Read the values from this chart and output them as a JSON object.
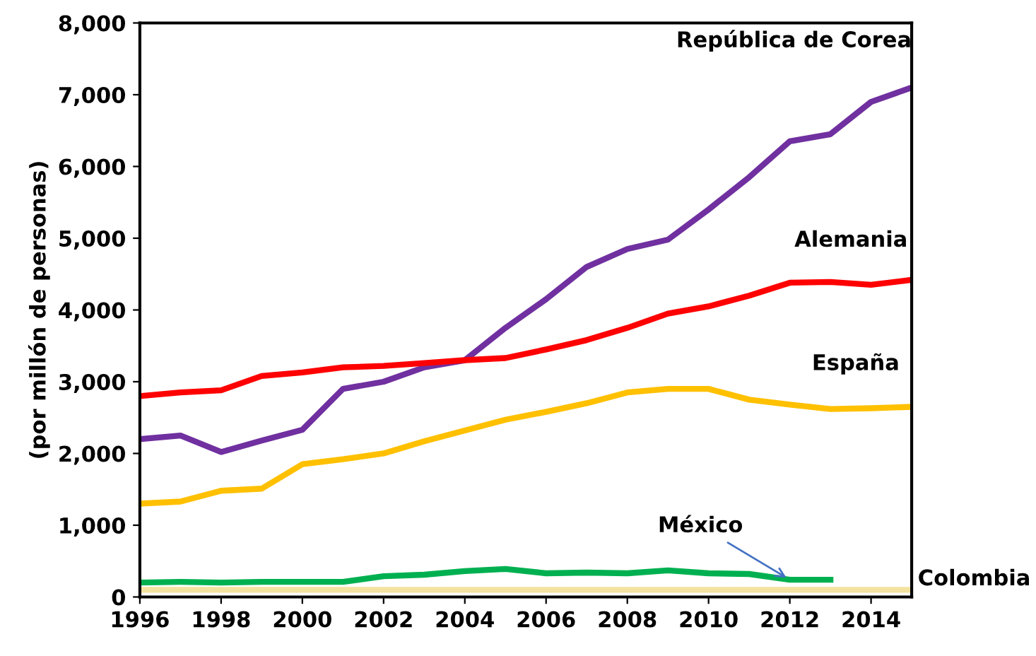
{
  "chart_data": {
    "type": "line",
    "ylabel": "(por millón de personas)",
    "x": [
      1996,
      1997,
      1998,
      1999,
      2000,
      2001,
      2002,
      2003,
      2004,
      2005,
      2006,
      2007,
      2008,
      2009,
      2010,
      2011,
      2012,
      2013,
      2014,
      2015
    ],
    "xlim": [
      1996,
      2015
    ],
    "xticks": [
      1996,
      1998,
      2000,
      2002,
      2004,
      2006,
      2008,
      2010,
      2012,
      2014
    ],
    "ylim": [
      0,
      8000
    ],
    "yticks": [
      {
        "value": 0,
        "label": "0"
      },
      {
        "value": 1000,
        "label": "1,000"
      },
      {
        "value": 2000,
        "label": "2,000"
      },
      {
        "value": 3000,
        "label": "3,000"
      },
      {
        "value": 4000,
        "label": "4,000"
      },
      {
        "value": 5000,
        "label": "5,000"
      },
      {
        "value": 6000,
        "label": "6,000"
      },
      {
        "value": 7000,
        "label": "7,000"
      },
      {
        "value": 8000,
        "label": "8,000"
      }
    ],
    "grid": false,
    "legend": false,
    "marker": "none",
    "line_style": "solid",
    "series": [
      {
        "name": "República de Corea",
        "color": "#7030a0",
        "values": [
          2200,
          2250,
          2020,
          2180,
          2330,
          2900,
          3000,
          3200,
          3300,
          3750,
          4150,
          4600,
          4850,
          4980,
          5400,
          5850,
          6350,
          6450,
          6900,
          7100
        ]
      },
      {
        "name": "Alemania",
        "color": "#ff0000",
        "values": [
          2800,
          2850,
          2880,
          3080,
          3130,
          3200,
          3220,
          3260,
          3300,
          3330,
          3450,
          3580,
          3750,
          3950,
          4050,
          4200,
          4380,
          4390,
          4350,
          4420
        ]
      },
      {
        "name": "España",
        "color": "#ffc000",
        "values": [
          1300,
          1330,
          1480,
          1510,
          1850,
          1920,
          2000,
          2170,
          2320,
          2470,
          2580,
          2700,
          2850,
          2900,
          2900,
          2750,
          2680,
          2620,
          2630,
          2650
        ]
      },
      {
        "name": "México",
        "color": "#00b050",
        "values": [
          200,
          210,
          200,
          210,
          210,
          210,
          290,
          310,
          360,
          390,
          330,
          340,
          330,
          370,
          330,
          320,
          240,
          240,
          null,
          null
        ]
      },
      {
        "name": "Colombia",
        "color": "#f3e3a0",
        "values": [
          100,
          100,
          100,
          100,
          100,
          100,
          100,
          100,
          100,
          100,
          100,
          100,
          100,
          100,
          100,
          100,
          100,
          100,
          100,
          100
        ]
      }
    ]
  }
}
